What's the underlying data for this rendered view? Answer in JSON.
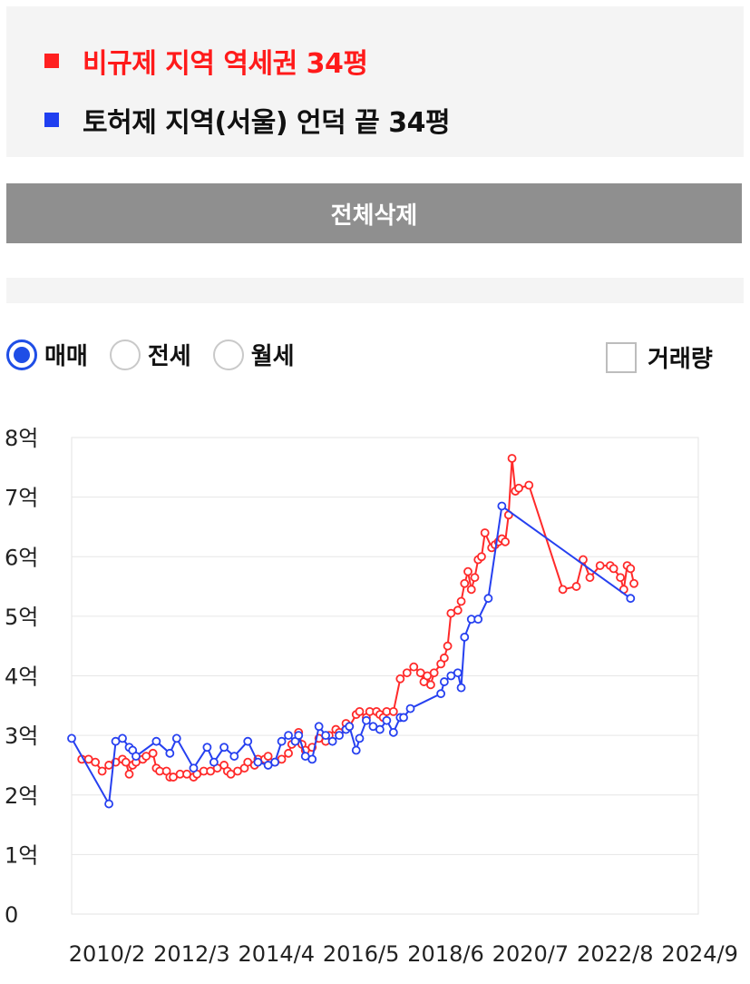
{
  "legend": {
    "items": [
      {
        "label": "비규제 지역 역세권 34평",
        "color": "#ff2020"
      },
      {
        "label": "토허제 지역(서울) 언덕 끝 34평",
        "color": "#1f3ff0"
      }
    ]
  },
  "delete_button_label": "전체삭제",
  "radio_options": [
    {
      "label": "매매",
      "selected": true
    },
    {
      "label": "전세",
      "selected": false
    },
    {
      "label": "월세",
      "selected": false
    }
  ],
  "volume_checkbox": {
    "label": "거래량",
    "checked": false
  },
  "chart_data": {
    "type": "line",
    "x_unit": "months since 2010/2",
    "x_range": [
      0,
      185
    ],
    "ylim": [
      0,
      8
    ],
    "y_ticks": [
      {
        "value": 0,
        "label": "0"
      },
      {
        "value": 1,
        "label": "1억"
      },
      {
        "value": 2,
        "label": "2억"
      },
      {
        "value": 3,
        "label": "3억"
      },
      {
        "value": 4,
        "label": "4억"
      },
      {
        "value": 5,
        "label": "5억"
      },
      {
        "value": 6,
        "label": "6억"
      },
      {
        "value": 7,
        "label": "7억"
      },
      {
        "value": 8,
        "label": "8억"
      }
    ],
    "x_ticks": [
      {
        "value": 0,
        "label": "2010/2"
      },
      {
        "value": 25,
        "label": "2012/3"
      },
      {
        "value": 50,
        "label": "2014/4"
      },
      {
        "value": 75,
        "label": "2016/5"
      },
      {
        "value": 100,
        "label": "2018/6"
      },
      {
        "value": 125,
        "label": "2020/7"
      },
      {
        "value": 150,
        "label": "2022/8"
      },
      {
        "value": 175,
        "label": "2024/9"
      }
    ],
    "grid": true,
    "series": [
      {
        "name": "비규제 지역 역세권 34평",
        "color": "#ff2a2a",
        "points": [
          [
            3,
            2.6
          ],
          [
            5,
            2.6
          ],
          [
            7,
            2.55
          ],
          [
            9,
            2.4
          ],
          [
            11,
            2.5
          ],
          [
            13,
            2.55
          ],
          [
            15,
            2.6
          ],
          [
            16,
            2.55
          ],
          [
            17,
            2.35
          ],
          [
            18,
            2.5
          ],
          [
            19,
            2.55
          ],
          [
            21,
            2.6
          ],
          [
            22,
            2.65
          ],
          [
            24,
            2.7
          ],
          [
            25,
            2.45
          ],
          [
            26,
            2.4
          ],
          [
            28,
            2.4
          ],
          [
            29,
            2.3
          ],
          [
            30,
            2.3
          ],
          [
            32,
            2.35
          ],
          [
            34,
            2.35
          ],
          [
            36,
            2.3
          ],
          [
            37,
            2.35
          ],
          [
            39,
            2.4
          ],
          [
            41,
            2.4
          ],
          [
            43,
            2.45
          ],
          [
            45,
            2.5
          ],
          [
            46,
            2.4
          ],
          [
            47,
            2.35
          ],
          [
            49,
            2.4
          ],
          [
            51,
            2.45
          ],
          [
            52,
            2.55
          ],
          [
            54,
            2.5
          ],
          [
            55,
            2.6
          ],
          [
            57,
            2.6
          ],
          [
            58,
            2.65
          ],
          [
            60,
            2.55
          ],
          [
            62,
            2.6
          ],
          [
            64,
            2.7
          ],
          [
            65,
            2.85
          ],
          [
            67,
            3.05
          ],
          [
            68,
            2.85
          ],
          [
            69,
            2.75
          ],
          [
            71,
            2.8
          ],
          [
            73,
            2.95
          ],
          [
            75,
            2.9
          ],
          [
            76,
            3.0
          ],
          [
            78,
            3.1
          ],
          [
            79,
            3.05
          ],
          [
            81,
            3.2
          ],
          [
            82,
            3.15
          ],
          [
            84,
            3.35
          ],
          [
            85,
            3.4
          ],
          [
            87,
            3.3
          ],
          [
            88,
            3.4
          ],
          [
            90,
            3.4
          ],
          [
            91,
            3.35
          ],
          [
            92,
            3.3
          ],
          [
            93,
            3.4
          ],
          [
            95,
            3.4
          ],
          [
            97,
            3.95
          ],
          [
            99,
            4.05
          ],
          [
            101,
            4.15
          ],
          [
            103,
            4.05
          ],
          [
            104,
            3.9
          ],
          [
            105,
            4.0
          ],
          [
            106,
            3.85
          ],
          [
            107,
            4.05
          ],
          [
            109,
            4.2
          ],
          [
            110,
            4.3
          ],
          [
            111,
            4.5
          ],
          [
            112,
            5.05
          ],
          [
            114,
            5.1
          ],
          [
            115,
            5.25
          ],
          [
            116,
            5.55
          ],
          [
            117,
            5.75
          ],
          [
            118,
            5.45
          ],
          [
            119,
            5.65
          ],
          [
            120,
            5.95
          ],
          [
            121,
            6.0
          ],
          [
            122,
            6.4
          ],
          [
            124,
            6.15
          ],
          [
            125,
            6.2
          ],
          [
            126,
            6.25
          ],
          [
            127,
            6.3
          ],
          [
            128,
            6.25
          ],
          [
            129,
            6.7
          ],
          [
            130,
            7.65
          ],
          [
            131,
            7.1
          ],
          [
            132,
            7.15
          ],
          [
            135,
            7.2
          ],
          [
            145,
            5.45
          ],
          [
            149,
            5.5
          ],
          [
            151,
            5.95
          ],
          [
            153,
            5.65
          ],
          [
            156,
            5.85
          ],
          [
            159,
            5.85
          ],
          [
            160,
            5.8
          ],
          [
            162,
            5.65
          ],
          [
            163,
            5.45
          ],
          [
            164,
            5.85
          ],
          [
            165,
            5.8
          ],
          [
            166,
            5.55
          ]
        ]
      },
      {
        "name": "토허제 지역(서울) 언덕 끝 34평",
        "color": "#2640f0",
        "points": [
          [
            0,
            2.95
          ],
          [
            11,
            1.85
          ],
          [
            13,
            2.9
          ],
          [
            15,
            2.95
          ],
          [
            17,
            2.8
          ],
          [
            18,
            2.75
          ],
          [
            19,
            2.65
          ],
          [
            25,
            2.9
          ],
          [
            29,
            2.7
          ],
          [
            31,
            2.95
          ],
          [
            36,
            2.45
          ],
          [
            40,
            2.8
          ],
          [
            42,
            2.55
          ],
          [
            45,
            2.8
          ],
          [
            48,
            2.65
          ],
          [
            52,
            2.9
          ],
          [
            55,
            2.55
          ],
          [
            58,
            2.5
          ],
          [
            60,
            2.55
          ],
          [
            62,
            2.9
          ],
          [
            64,
            3.0
          ],
          [
            66,
            2.9
          ],
          [
            67,
            3.0
          ],
          [
            69,
            2.65
          ],
          [
            71,
            2.6
          ],
          [
            73,
            3.15
          ],
          [
            75,
            3.0
          ],
          [
            77,
            2.9
          ],
          [
            79,
            3.0
          ],
          [
            81,
            3.1
          ],
          [
            82,
            3.15
          ],
          [
            84,
            2.75
          ],
          [
            85,
            2.95
          ],
          [
            87,
            3.25
          ],
          [
            89,
            3.15
          ],
          [
            91,
            3.1
          ],
          [
            93,
            3.25
          ],
          [
            95,
            3.05
          ],
          [
            97,
            3.3
          ],
          [
            98,
            3.3
          ],
          [
            100,
            3.45
          ],
          [
            109,
            3.7
          ],
          [
            110,
            3.9
          ],
          [
            112,
            4.0
          ],
          [
            114,
            4.05
          ],
          [
            115,
            3.8
          ],
          [
            116,
            4.65
          ],
          [
            118,
            4.95
          ],
          [
            120,
            4.95
          ],
          [
            123,
            5.3
          ],
          [
            127,
            6.85
          ],
          [
            165,
            5.3
          ]
        ]
      }
    ]
  }
}
